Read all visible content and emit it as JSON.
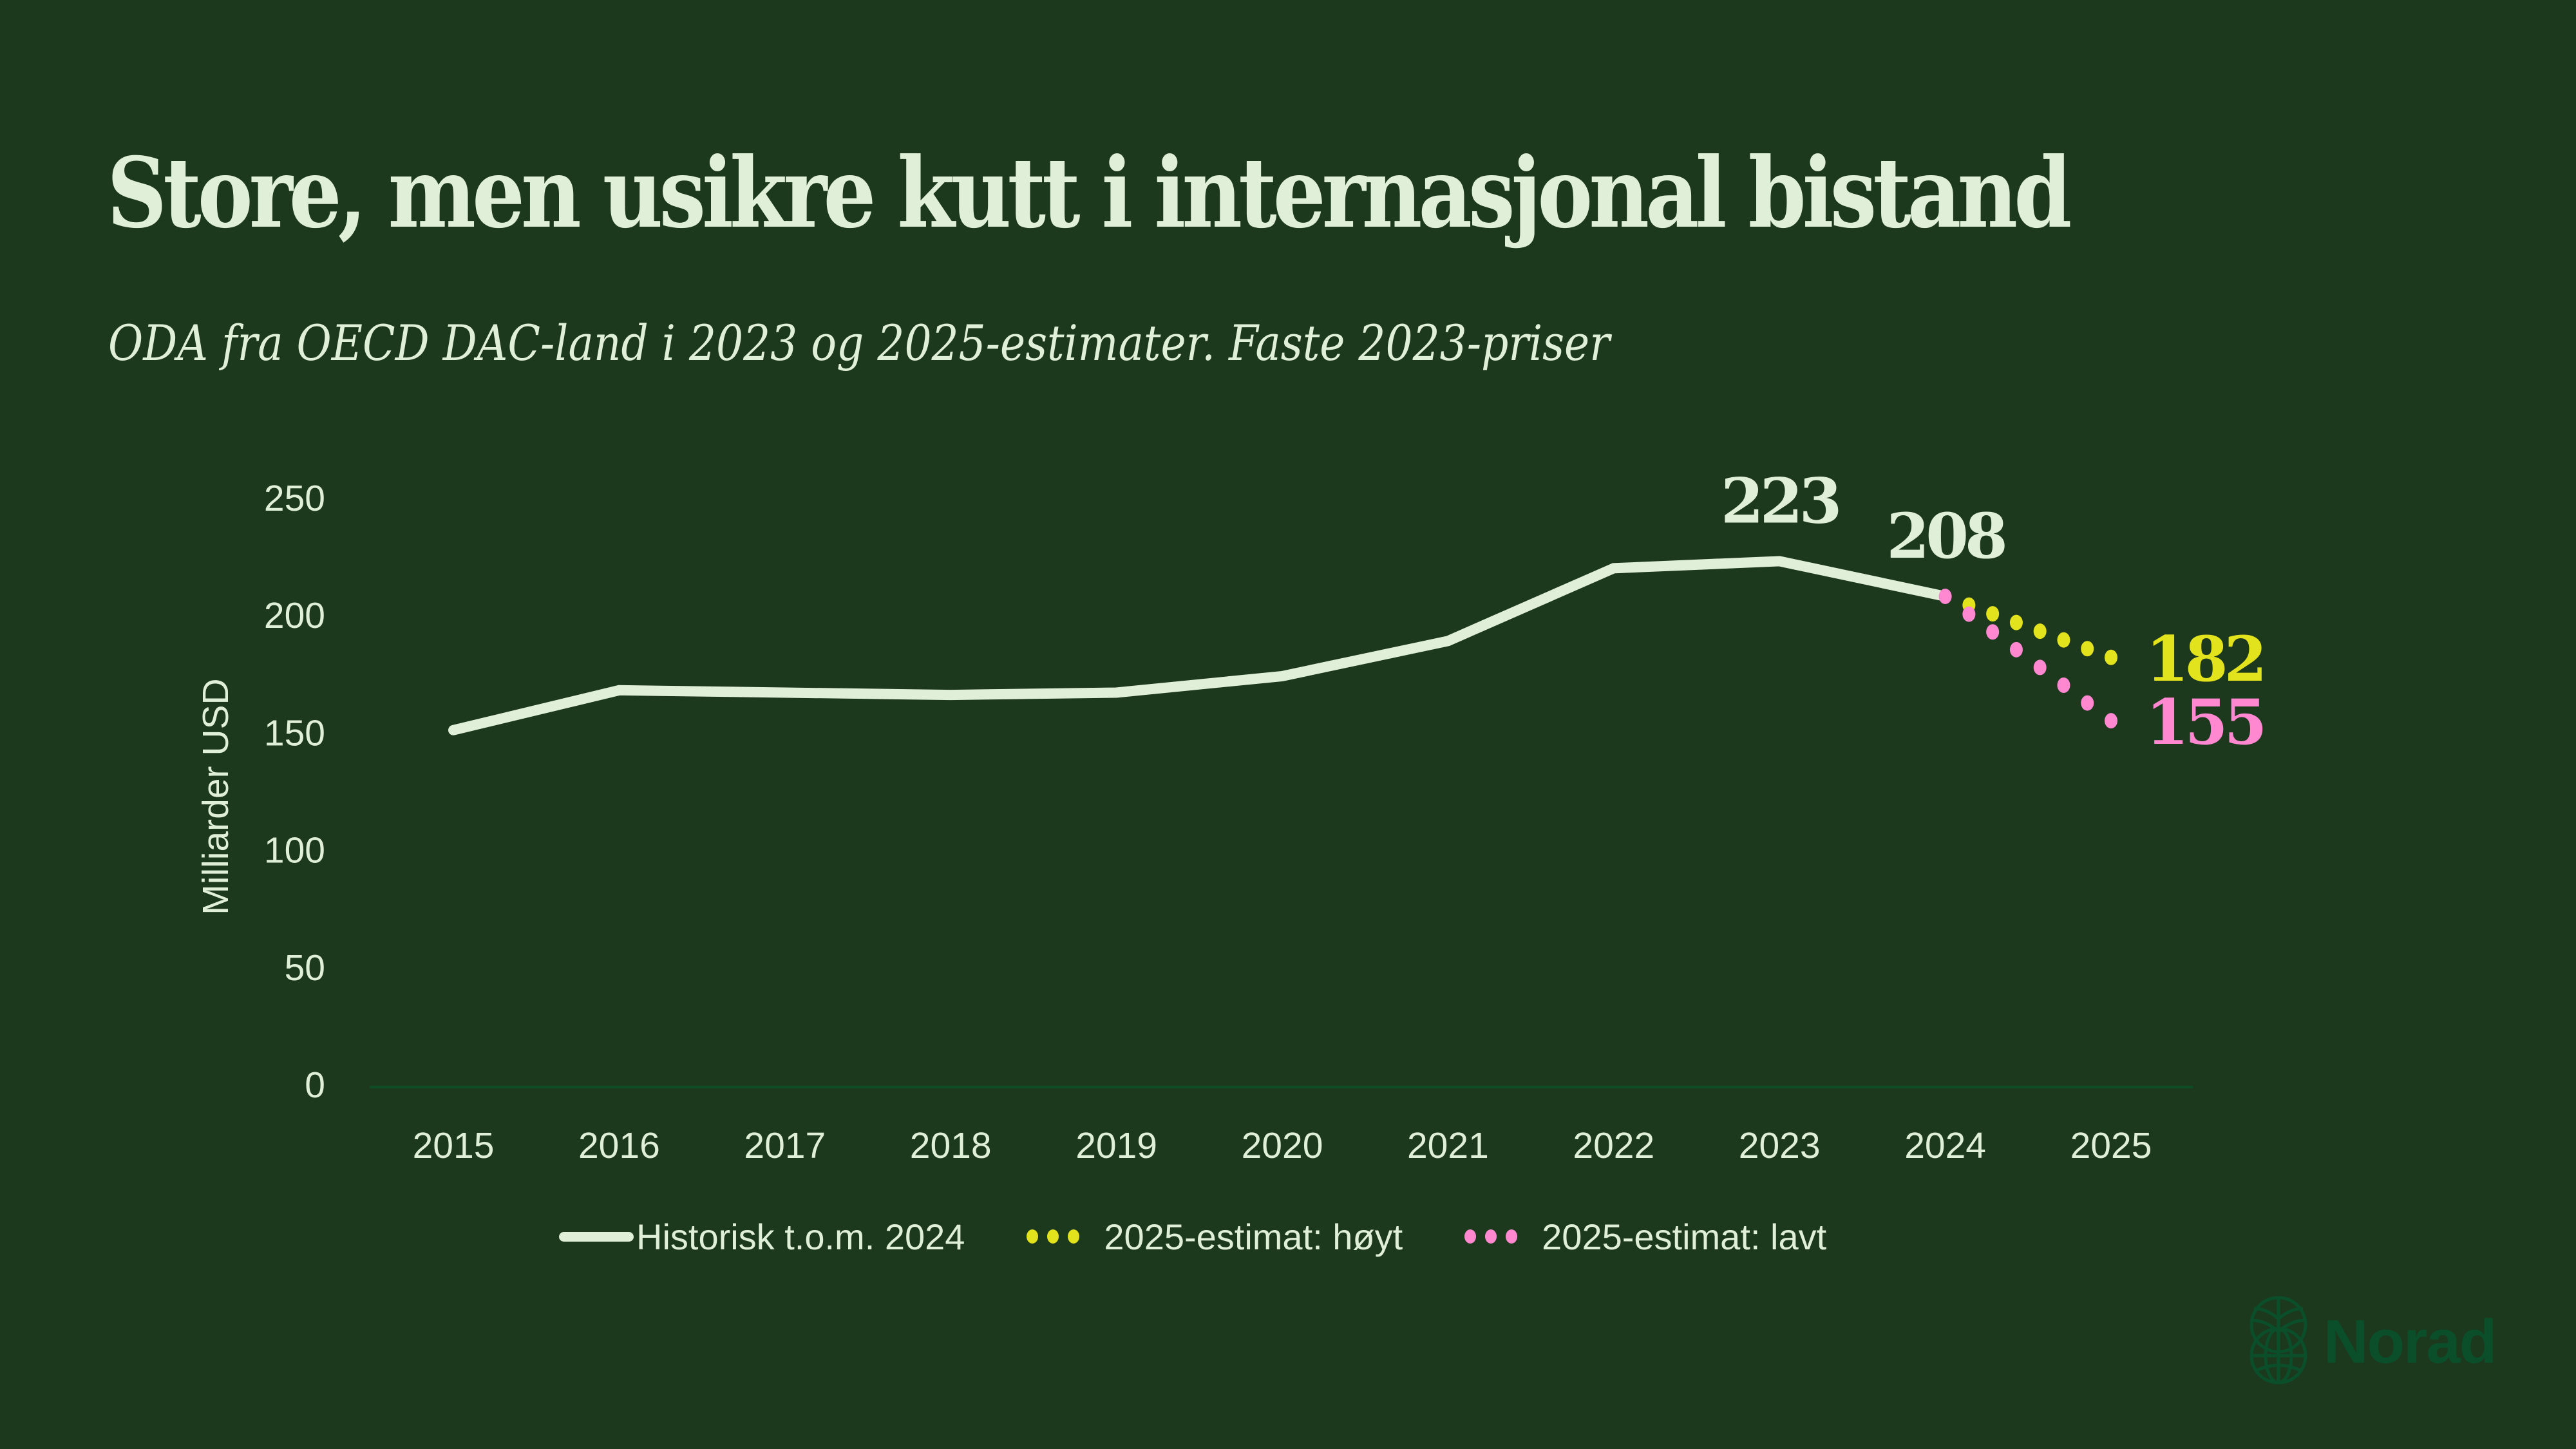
{
  "title": "Store, men usikre kutt i internasjonal bistand",
  "subtitle": "ODA fra OECD DAC-land i 2023 og 2025-estimater. Faste 2023-priser",
  "colors": {
    "background": "#1c381d",
    "text": "#e0efd8",
    "historical": "#e0efd8",
    "estimate_high": "#e2e21d",
    "estimate_low": "#ff88d0",
    "baseline": "#0d4a26",
    "logo": "#0b4f2a"
  },
  "chart_data": {
    "type": "line",
    "title": "Store, men usikre kutt i internasjonal bistand",
    "subtitle": "ODA fra OECD DAC-land i 2023 og 2025-estimater. Faste 2023-priser",
    "xlabel": "",
    "ylabel": "Milliarder USD",
    "x": [
      "2015",
      "2016",
      "2017",
      "2018",
      "2019",
      "2020",
      "2021",
      "2022",
      "2023",
      "2024",
      "2025"
    ],
    "ylim": [
      0,
      250
    ],
    "yticks": [
      0,
      50,
      100,
      150,
      200,
      250
    ],
    "grid": false,
    "legend_position": "bottom",
    "series": [
      {
        "name": "Historisk t.o.m. 2024",
        "style": "solid",
        "color": "#e0efd8",
        "x": [
          "2015",
          "2016",
          "2017",
          "2018",
          "2019",
          "2020",
          "2021",
          "2022",
          "2023",
          "2024"
        ],
        "values": [
          151,
          168,
          167,
          166,
          167,
          174,
          189,
          220,
          223,
          208
        ]
      },
      {
        "name": "2025-estimat: høyt",
        "style": "dotted",
        "color": "#e2e21d",
        "x": [
          "2024",
          "2025"
        ],
        "values": [
          208,
          182
        ]
      },
      {
        "name": "2025-estimat: lavt",
        "style": "dotted",
        "color": "#ff88d0",
        "x": [
          "2024",
          "2025"
        ],
        "values": [
          208,
          155
        ]
      }
    ],
    "annotations": [
      {
        "x": "2023",
        "value": 223,
        "text": "223",
        "color": "#e0efd8"
      },
      {
        "x": "2024",
        "value": 208,
        "text": "208",
        "color": "#e0efd8"
      },
      {
        "x": "2025",
        "value": 182,
        "text": "182",
        "color": "#e2e21d"
      },
      {
        "x": "2025",
        "value": 155,
        "text": "155",
        "color": "#ff88d0"
      }
    ]
  },
  "legend": [
    {
      "label": "Historisk t.o.m. 2024",
      "kind": "line",
      "color": "#e0efd8"
    },
    {
      "label": "2025-estimat: høyt",
      "kind": "dots",
      "color": "#e2e21d"
    },
    {
      "label": "2025-estimat: lavt",
      "kind": "dots",
      "color": "#ff88d0"
    }
  ],
  "logo": {
    "text": "Norad",
    "icon": "norad-globe-leaf-icon"
  }
}
